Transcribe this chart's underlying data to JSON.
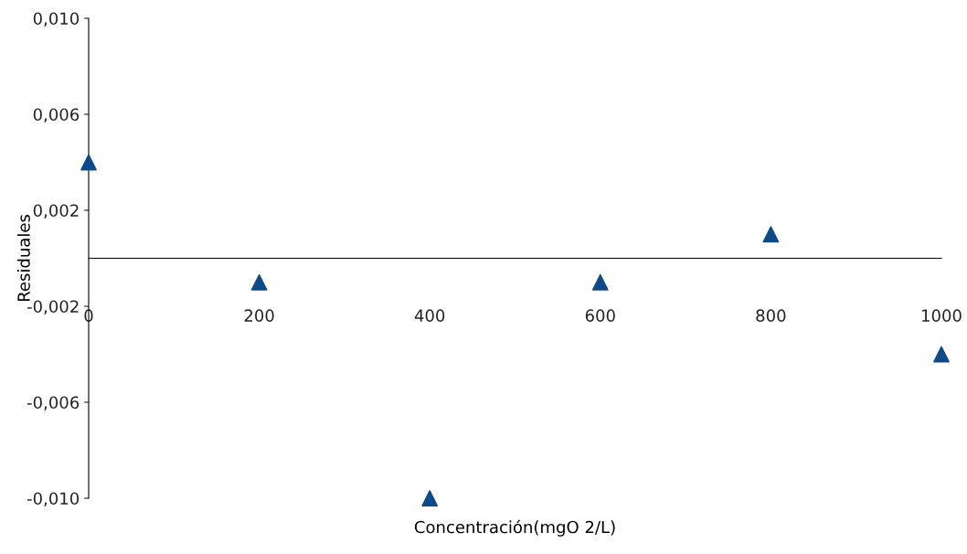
{
  "chart_data": {
    "type": "scatter",
    "xlabel": "Concentración(mgO 2/L)",
    "ylabel": "Residuales",
    "x": [
      0,
      200,
      400,
      600,
      800,
      1000
    ],
    "series": [
      {
        "color": "#0d4a8a",
        "values": [
          0.004,
          -0.001,
          -0.01,
          -0.001,
          0.001,
          -0.004
        ]
      }
    ],
    "xlim": [
      0,
      1000
    ],
    "xticks": [
      0,
      200,
      400,
      600,
      800,
      1000
    ],
    "ylim": [
      -0.01,
      0.01
    ],
    "yticks": [
      {
        "value": 0.01,
        "label": "0,010"
      },
      {
        "value": 0.006,
        "label": "0,006"
      },
      {
        "value": 0.002,
        "label": "0,002"
      },
      {
        "value": -0.002,
        "label": "-0,002"
      },
      {
        "value": -0.006,
        "label": "-0,006"
      },
      {
        "value": -0.01,
        "label": "-0,010"
      }
    ],
    "marker": "triangle",
    "grid": false,
    "legend": false
  }
}
